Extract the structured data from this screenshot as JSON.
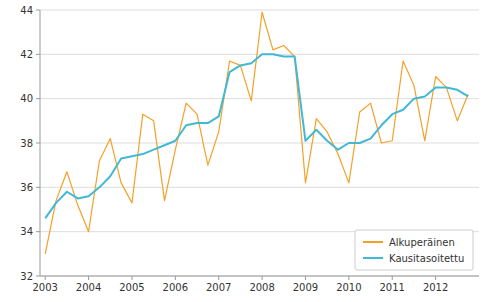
{
  "chart_data": {
    "type": "line",
    "x": [
      2003.0,
      2003.25,
      2003.5,
      2003.75,
      2004.0,
      2004.25,
      2004.5,
      2004.75,
      2005.0,
      2005.25,
      2005.5,
      2005.75,
      2006.0,
      2006.25,
      2006.5,
      2006.75,
      2007.0,
      2007.25,
      2007.5,
      2007.75,
      2008.0,
      2008.25,
      2008.5,
      2008.75,
      2009.0,
      2009.25,
      2009.5,
      2009.75,
      2010.0,
      2010.25,
      2010.5,
      2010.75,
      2011.0,
      2011.25,
      2011.5,
      2011.75,
      2012.0,
      2012.25,
      2012.5,
      2012.75
    ],
    "series": [
      {
        "name": "Alkuperäinen",
        "color": "#f5a028",
        "values": [
          33.0,
          35.4,
          36.7,
          35.2,
          34.0,
          37.2,
          38.2,
          36.2,
          35.3,
          39.3,
          39.0,
          35.4,
          37.7,
          39.8,
          39.3,
          37.0,
          38.5,
          41.7,
          41.5,
          39.9,
          43.9,
          42.2,
          42.4,
          41.9,
          36.2,
          39.1,
          38.5,
          37.5,
          36.2,
          39.4,
          39.8,
          38.0,
          38.1,
          41.7,
          40.6,
          38.1,
          41.0,
          40.5,
          39.0,
          40.2
        ]
      },
      {
        "name": "Kausitasoitettu",
        "color": "#41b8d5",
        "values": [
          34.6,
          35.3,
          35.8,
          35.5,
          35.6,
          36.0,
          36.5,
          37.3,
          37.4,
          37.5,
          37.7,
          37.9,
          38.1,
          38.8,
          38.9,
          38.9,
          39.2,
          41.2,
          41.5,
          41.6,
          42.0,
          42.0,
          41.9,
          41.9,
          38.1,
          38.6,
          38.1,
          37.7,
          38.0,
          38.0,
          38.2,
          38.8,
          39.3,
          39.5,
          40.0,
          40.1,
          40.5,
          40.5,
          40.4,
          40.1
        ]
      }
    ],
    "xlim": [
      2002.88,
      2013.0
    ],
    "xticks": [
      2003,
      2004,
      2005,
      2006,
      2007,
      2008,
      2009,
      2010,
      2011,
      2012
    ],
    "ylim": [
      32,
      44
    ],
    "yticks": [
      32,
      34,
      36,
      38,
      40,
      42,
      44
    ],
    "grid": "y",
    "legend": "lower right"
  }
}
